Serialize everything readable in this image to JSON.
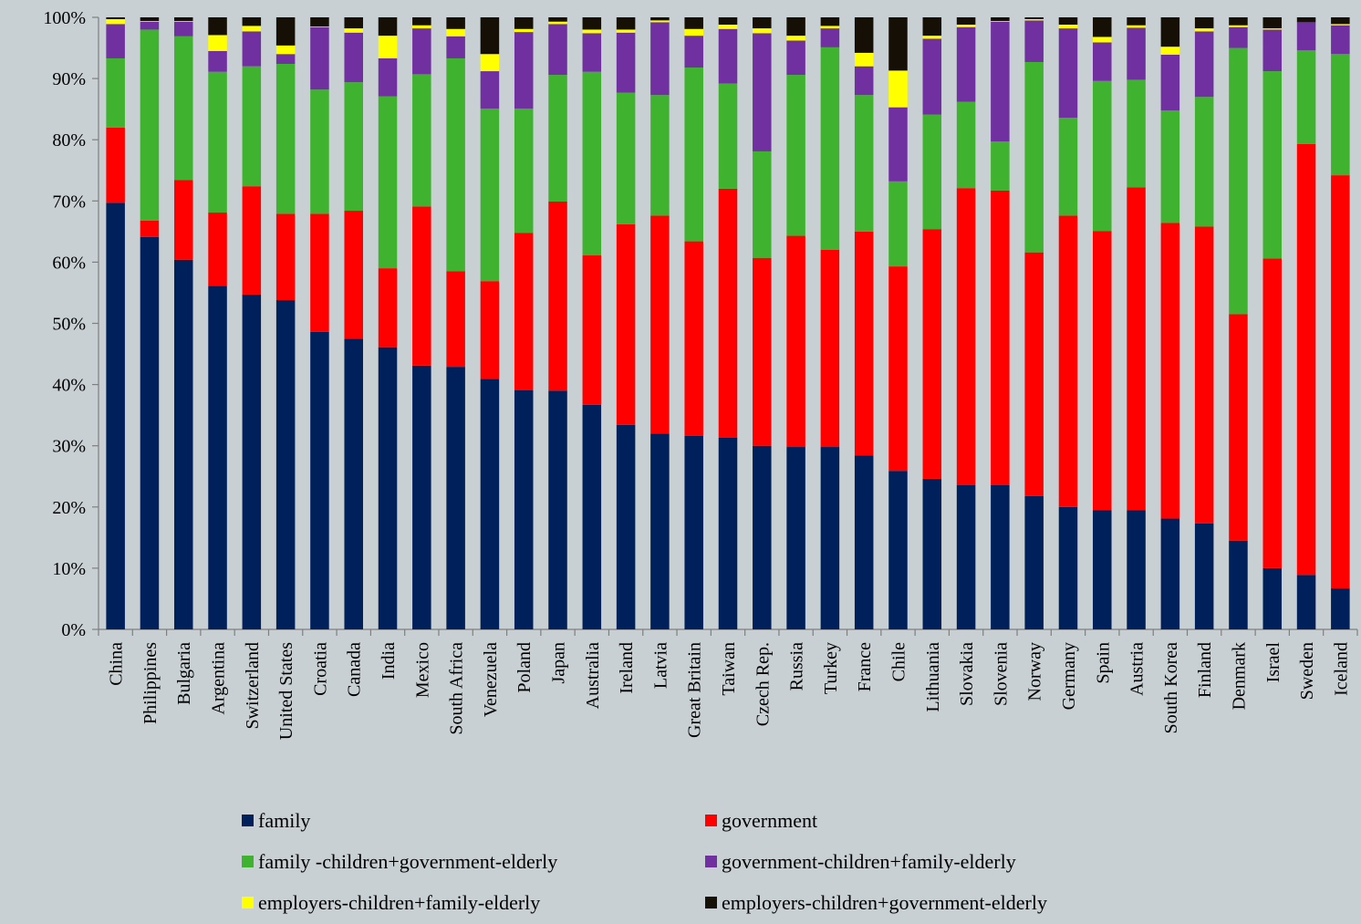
{
  "chart_data": {
    "type": "bar",
    "stacked": true,
    "percent": true,
    "ylim": [
      0,
      100
    ],
    "yticks": [
      "0%",
      "10%",
      "20%",
      "30%",
      "40%",
      "50%",
      "60%",
      "70%",
      "80%",
      "90%",
      "100%"
    ],
    "grid": false,
    "legend_position": "bottom",
    "categories": [
      "China",
      "Philippines",
      "Bulgaria",
      "Argentina",
      "Switzerland",
      "United States",
      "Croatia",
      "Canada",
      "India",
      "Mexico",
      "South Africa",
      "Venezuela",
      "Poland",
      "Japan",
      "Australia",
      "Ireland",
      "Latvia",
      "Great Britain",
      "Taiwan",
      "Czech Rep.",
      "Russia",
      "Turkey",
      "France",
      "Chile",
      "Lithuania",
      "Slovakia",
      "Slovenia",
      "Norway",
      "Germany",
      "Spain",
      "Austria",
      "South Korea",
      "Finland",
      "Denmark",
      "Israel",
      "Sweden",
      "Iceland"
    ],
    "series": [
      {
        "name": "family",
        "color": "#00205b",
        "values": [
          69.7,
          64.1,
          60.4,
          56.1,
          54.7,
          53.8,
          48.6,
          47.5,
          46.1,
          43.1,
          42.9,
          40.9,
          39.1,
          39.0,
          36.7,
          33.4,
          32.0,
          31.6,
          31.3,
          30.0,
          29.8,
          29.8,
          28.4,
          25.9,
          24.6,
          23.6,
          23.6,
          21.8,
          20.0,
          19.5,
          19.5,
          18.1,
          17.3,
          14.5,
          10.0,
          8.9,
          6.7
        ]
      },
      {
        "name": "government",
        "color": "#ff0000",
        "values": [
          12.3,
          2.7,
          13.0,
          12.0,
          17.7,
          14.1,
          19.3,
          20.9,
          12.9,
          26.0,
          15.6,
          16.0,
          25.7,
          30.9,
          24.4,
          32.8,
          35.6,
          31.8,
          40.7,
          30.7,
          34.5,
          32.2,
          36.6,
          33.4,
          40.8,
          48.5,
          48.1,
          39.8,
          47.6,
          45.6,
          52.7,
          48.3,
          48.5,
          37.0,
          50.6,
          70.4,
          67.5
        ]
      },
      {
        "name": "family -children+government-elderly",
        "color": "#3fb22f",
        "values": [
          11.3,
          31.2,
          23.5,
          23.0,
          19.6,
          24.5,
          20.3,
          21.0,
          28.1,
          21.6,
          34.8,
          28.2,
          20.3,
          20.7,
          30.0,
          21.5,
          19.7,
          28.4,
          17.2,
          17.4,
          26.3,
          33.1,
          22.3,
          13.9,
          18.7,
          14.1,
          8.0,
          31.1,
          16.0,
          24.5,
          17.6,
          18.4,
          21.2,
          43.5,
          30.6,
          15.3,
          19.8
        ]
      },
      {
        "name": "government-children+family-elderly",
        "color": "#7030a0",
        "values": [
          5.6,
          1.3,
          2.4,
          3.4,
          5.7,
          1.6,
          10.2,
          8.1,
          6.2,
          7.5,
          3.6,
          6.1,
          12.5,
          8.3,
          6.3,
          9.8,
          11.9,
          5.2,
          8.9,
          19.3,
          5.6,
          3.1,
          4.7,
          12.1,
          12.4,
          12.2,
          19.6,
          6.8,
          14.6,
          6.3,
          8.5,
          9.1,
          10.7,
          3.4,
          6.8,
          4.6,
          4.7
        ]
      },
      {
        "name": "employers-children+family-elderly",
        "color": "#ffff00",
        "values": [
          0.8,
          0.1,
          0.1,
          2.6,
          0.9,
          1.4,
          0.1,
          0.7,
          3.7,
          0.5,
          1.2,
          2.8,
          0.5,
          0.4,
          0.6,
          0.5,
          0.3,
          1.1,
          0.7,
          0.8,
          0.8,
          0.4,
          2.2,
          6.0,
          0.5,
          0.4,
          0.1,
          0.2,
          0.6,
          0.9,
          0.4,
          1.3,
          0.5,
          0.3,
          0.2,
          0.0,
          0.2
        ]
      },
      {
        "name": "employers-children+government-elderly",
        "color": "#150f05",
        "values": [
          0.3,
          0.6,
          0.6,
          2.9,
          1.4,
          4.6,
          1.5,
          1.8,
          3.0,
          1.3,
          1.9,
          6.0,
          1.9,
          0.7,
          2.0,
          2.0,
          0.5,
          1.9,
          1.2,
          1.8,
          3.0,
          1.4,
          5.8,
          8.7,
          3.0,
          1.2,
          0.6,
          0.3,
          1.2,
          3.2,
          1.3,
          4.8,
          1.8,
          1.3,
          1.8,
          0.8,
          1.1
        ]
      }
    ]
  }
}
